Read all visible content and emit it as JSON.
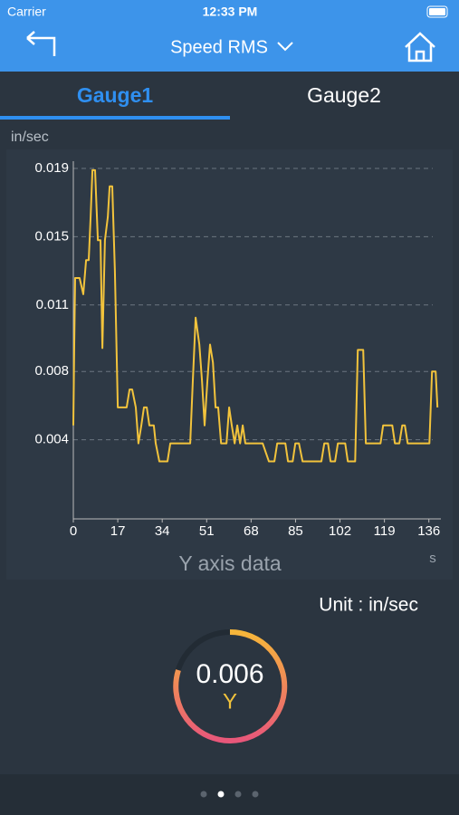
{
  "screen": {
    "carrier": "Carrier",
    "time": "12:33 PM",
    "nav_title": "Speed RMS",
    "tabs": [
      "Gauge1",
      "Gauge2"
    ],
    "unit_label": "Unit :  in/sec",
    "gauge_value": "0.006",
    "gauge_axis": "Y"
  },
  "chart_data": {
    "type": "line",
    "ylabel": "in/sec",
    "xlabel": "Y axis data",
    "xunit": "s",
    "color": "#f2c33c",
    "grid": true,
    "x": [
      0,
      0.35,
      0.7,
      2.4,
      3.8,
      4.9,
      5.9,
      6.6,
      7.3,
      8.3,
      9.4,
      10.4,
      11.1,
      12.1,
      13.2,
      13.9,
      14.9,
      15.9,
      17.0,
      20.4,
      21.5,
      22.5,
      23.9,
      24.9,
      26.0,
      27.0,
      28.1,
      29.1,
      30.8,
      31.5,
      32.9,
      36.0,
      37.1,
      44.7,
      45.7,
      46.8,
      48.2,
      49.2,
      50.2,
      51.3,
      52.3,
      53.4,
      54.4,
      55.4,
      56.5,
      58.6,
      59.6,
      60.6,
      61.7,
      62.7,
      63.8,
      64.8,
      65.8,
      72.4,
      74.8,
      76.9,
      78.0,
      81.1,
      82.1,
      83.9,
      84.9,
      86.3,
      87.7,
      94.9,
      96.0,
      97.4,
      98.4,
      100.1,
      101.2,
      104.0,
      105.0,
      107.8,
      108.8,
      110.9,
      111.9,
      117.5,
      118.5,
      122.0,
      123.0,
      124.7,
      125.8,
      126.8,
      127.9,
      136.2,
      137.2,
      138.6,
      139.3
    ],
    "values": [
      0.0046,
      0.0091,
      0.0128,
      0.0128,
      0.0119,
      0.0138,
      0.0138,
      0.0162,
      0.0188,
      0.0188,
      0.0149,
      0.0149,
      0.0089,
      0.0149,
      0.0162,
      0.0179,
      0.0179,
      0.0132,
      0.0056,
      0.0056,
      0.0066,
      0.0066,
      0.0056,
      0.0036,
      0.0046,
      0.0056,
      0.0056,
      0.0046,
      0.0046,
      0.0036,
      0.0026,
      0.0026,
      0.0036,
      0.0036,
      0.0071,
      0.0106,
      0.0091,
      0.0071,
      0.0046,
      0.0071,
      0.0091,
      0.0081,
      0.0056,
      0.0056,
      0.0036,
      0.0036,
      0.0056,
      0.0046,
      0.0036,
      0.0046,
      0.0036,
      0.0046,
      0.0036,
      0.0036,
      0.0026,
      0.0026,
      0.0036,
      0.0036,
      0.0026,
      0.0026,
      0.0036,
      0.0036,
      0.0026,
      0.0026,
      0.0036,
      0.0036,
      0.0026,
      0.0026,
      0.0036,
      0.0036,
      0.0026,
      0.0026,
      0.0088,
      0.0088,
      0.0036,
      0.0036,
      0.0046,
      0.0046,
      0.0036,
      0.0036,
      0.0046,
      0.0046,
      0.0036,
      0.0036,
      0.0076,
      0.0076,
      0.0056
    ],
    "xlim": [
      0,
      140.6
    ],
    "xticks": [
      0,
      17,
      34,
      51,
      68,
      85,
      102,
      119,
      136
    ],
    "ylim": [
      -0.0006,
      0.0193
    ],
    "yticks": [
      {
        "value": 0.0038,
        "label": "0.004"
      },
      {
        "value": 0.0076,
        "label": "0.008"
      },
      {
        "value": 0.0113,
        "label": "0.011"
      },
      {
        "value": 0.0151,
        "label": "0.015"
      },
      {
        "value": 0.0189,
        "label": "0.019"
      }
    ]
  }
}
